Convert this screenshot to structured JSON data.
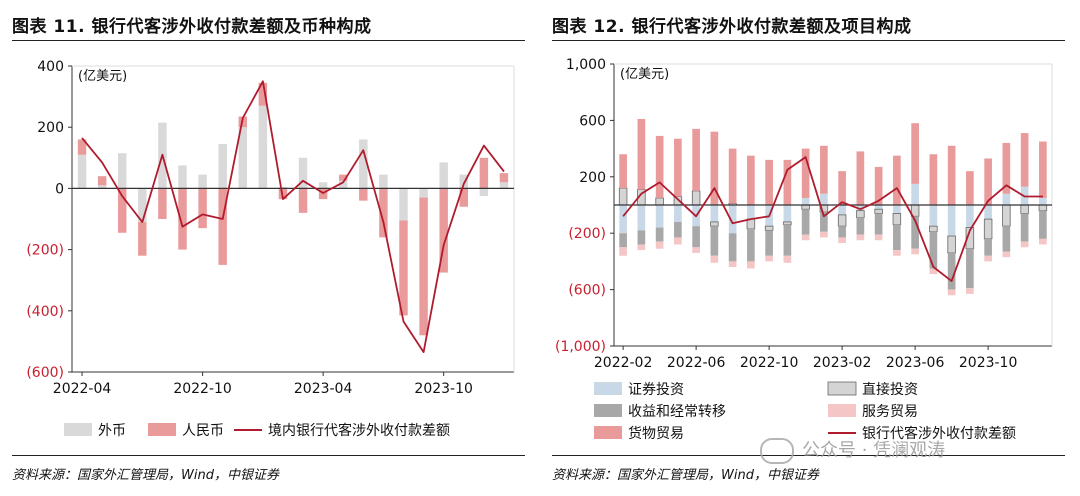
{
  "left": {
    "title": "图表 11. 银行代客涉外收付款差额及币种构成",
    "source": "资料来源：国家外汇管理局，Wind，中银证券"
  },
  "right": {
    "title": "图表 12. 银行代客涉外收付款差额及项目构成",
    "source": "资料来源：国家外汇管理局，Wind，中银证券"
  },
  "watermark": "公众号 · 凭澜观涛",
  "chart_data": [
    {
      "type": "bar",
      "stacked": true,
      "unit_label": "(亿美元)",
      "ylim": [
        -600,
        400
      ],
      "yticks": [
        400,
        200,
        0,
        -200,
        -400,
        -600
      ],
      "ytick_labels": [
        "400",
        "200",
        "0",
        "(200)",
        "(400)",
        "(600)"
      ],
      "negative_tick_color": "#c8202f",
      "categories": [
        "2022-04",
        "2022-05",
        "2022-06",
        "2022-07",
        "2022-08",
        "2022-09",
        "2022-10",
        "2022-11",
        "2022-12",
        "2023-01",
        "2023-02",
        "2023-03",
        "2023-04",
        "2023-05",
        "2023-06",
        "2023-07",
        "2023-08",
        "2023-09",
        "2023-10",
        "2023-11",
        "2023-12",
        "2024-01"
      ],
      "x_tick_labels": [
        {
          "index": 0,
          "label": "2022-04"
        },
        {
          "index": 6,
          "label": "2022-10"
        },
        {
          "index": 12,
          "label": "2023-04"
        },
        {
          "index": 18,
          "label": "2023-10"
        }
      ],
      "series": [
        {
          "name": "外币",
          "kind": "bar",
          "color": "#d9d9d9",
          "values": [
            110,
            10,
            115,
            -110,
            215,
            75,
            45,
            145,
            200,
            270,
            5,
            100,
            20,
            25,
            160,
            45,
            -105,
            -30,
            85,
            45,
            -25,
            20
          ]
        },
        {
          "name": "人民币",
          "kind": "bar",
          "color": "#e99a9a",
          "values": [
            50,
            30,
            -145,
            -110,
            -100,
            -200,
            -130,
            -250,
            35,
            75,
            -35,
            -80,
            -35,
            20,
            -40,
            -160,
            -310,
            -450,
            -275,
            -60,
            100,
            30
          ]
        },
        {
          "name": "境内银行代客涉外收付款差额",
          "kind": "line",
          "color": "#b01c2e",
          "values": [
            165,
            85,
            -25,
            -110,
            110,
            -125,
            -85,
            -100,
            230,
            350,
            -35,
            25,
            -15,
            20,
            125,
            -110,
            -435,
            -535,
            -185,
            15,
            140,
            55
          ]
        }
      ],
      "legend_position": "bottom"
    },
    {
      "type": "bar",
      "stacked": true,
      "unit_label": "(亿美元)",
      "ylim": [
        -1000,
        1000
      ],
      "yticks": [
        1000,
        600,
        200,
        -200,
        -600,
        -1000
      ],
      "ytick_labels": [
        "1,000",
        "600",
        "200",
        "(200)",
        "(600)",
        "(1,000)"
      ],
      "negative_tick_color": "#c8202f",
      "categories": [
        "2022-02",
        "2022-03",
        "2022-04",
        "2022-05",
        "2022-06",
        "2022-07",
        "2022-08",
        "2022-09",
        "2022-10",
        "2022-11",
        "2022-12",
        "2023-01",
        "2023-02",
        "2023-03",
        "2023-04",
        "2023-05",
        "2023-06",
        "2023-07",
        "2023-08",
        "2023-09",
        "2023-10",
        "2023-11",
        "2023-12",
        "2024-01"
      ],
      "x_tick_labels": [
        {
          "index": 0,
          "label": "2022-02"
        },
        {
          "index": 4,
          "label": "2022-06"
        },
        {
          "index": 8,
          "label": "2022-10"
        },
        {
          "index": 12,
          "label": "2023-02"
        },
        {
          "index": 16,
          "label": "2023-06"
        },
        {
          "index": 20,
          "label": "2023-10"
        }
      ],
      "series": [
        {
          "name": "证券投资",
          "kind": "bar",
          "color": "#c9d8e6",
          "values": [
            -200,
            -180,
            -160,
            -120,
            -150,
            -120,
            -200,
            -100,
            -150,
            -120,
            50,
            80,
            -70,
            -40,
            -30,
            -60,
            150,
            -150,
            -220,
            -160,
            -100,
            80,
            130,
            50
          ]
        },
        {
          "name": "直接投资",
          "kind": "bar",
          "color": "#d4d4d4",
          "values": [
            120,
            110,
            50,
            60,
            100,
            -30,
            10,
            -70,
            -30,
            -20,
            -30,
            -50,
            -80,
            -50,
            -30,
            -80,
            -80,
            -40,
            -120,
            -150,
            -140,
            -150,
            -60,
            -40
          ]
        },
        {
          "name": "收益和经常转移",
          "kind": "bar",
          "color": "#a8a8a8",
          "values": [
            -100,
            -100,
            -100,
            -110,
            -150,
            -210,
            -200,
            -230,
            -180,
            -220,
            -180,
            -140,
            -80,
            -120,
            -150,
            -180,
            -230,
            -260,
            -260,
            -280,
            -120,
            -180,
            -200,
            -200
          ]
        },
        {
          "name": "服务贸易",
          "kind": "bar",
          "color": "#f5c6c6",
          "values": [
            -60,
            -40,
            -50,
            -50,
            -40,
            -50,
            -40,
            -50,
            -40,
            -50,
            -40,
            -40,
            -40,
            -40,
            -40,
            -40,
            -40,
            -40,
            -40,
            -40,
            -40,
            -40,
            -40,
            -40
          ]
        },
        {
          "name": "货物贸易",
          "kind": "bar",
          "color": "#e99a9a",
          "values": [
            240,
            500,
            440,
            410,
            440,
            520,
            390,
            350,
            320,
            320,
            350,
            340,
            240,
            380,
            270,
            350,
            430,
            360,
            420,
            240,
            330,
            360,
            380,
            400
          ]
        },
        {
          "name": "银行代客涉外收付款差额",
          "kind": "line",
          "color": "#b01c2e",
          "values": [
            -80,
            80,
            160,
            40,
            -80,
            120,
            -130,
            -100,
            -80,
            250,
            340,
            -80,
            20,
            -30,
            30,
            120,
            -110,
            -440,
            -540,
            -180,
            30,
            140,
            60,
            60
          ]
        }
      ],
      "legend_position": "bottom"
    }
  ]
}
